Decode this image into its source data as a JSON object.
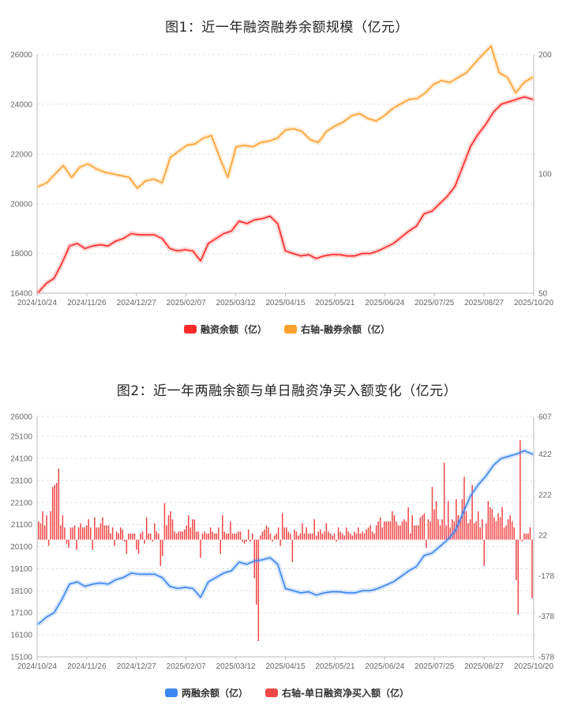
{
  "colors": {
    "margin": "#ff2a2a",
    "short": "#ffa12e",
    "total": "#3d86f0",
    "net": "#f04848"
  },
  "chart_data": [
    {
      "type": "line",
      "title": "图1：近一年融资融券余额规模（亿元）",
      "x_ticks": [
        "2024/10/24",
        "2024/11/26",
        "2024/12/27",
        "2025/02/07",
        "2025/03/12",
        "2025/04/15",
        "2025/05/21",
        "2025/06/24",
        "2025/07/25",
        "2025/08/27",
        "2025/10/20"
      ],
      "y_left": {
        "ticks": [
          "26000",
          "24000",
          "22000",
          "20000",
          "18000",
          "16400"
        ],
        "min": 16400,
        "max": 26000
      },
      "y_right": {
        "ticks": [
          "200",
          "100",
          "50"
        ],
        "scale": "log",
        "min": 50,
        "max": 200
      },
      "grid": true,
      "legend_position": "bottom",
      "series": [
        {
          "name": "融资余额（亿）",
          "axis": "left",
          "values": [
            16450,
            16800,
            17000,
            17600,
            18300,
            18400,
            18200,
            18300,
            18350,
            18300,
            18500,
            18600,
            18800,
            18750,
            18750,
            18750,
            18600,
            18200,
            18100,
            18150,
            18100,
            17700,
            18400,
            18600,
            18800,
            18900,
            19300,
            19200,
            19350,
            19400,
            19500,
            19200,
            18100,
            18000,
            17900,
            17950,
            17800,
            17900,
            17950,
            17950,
            17900,
            17900,
            18000,
            18000,
            18100,
            18250,
            18400,
            18650,
            18900,
            19100,
            19600,
            19700,
            20000,
            20300,
            20700,
            21500,
            22300,
            22800,
            23200,
            23700,
            24000,
            24100,
            24200,
            24300,
            24200
          ]
        },
        {
          "name": "右轴-融券余额（亿）",
          "axis": "right",
          "values": [
            93,
            95,
            100,
            105,
            98,
            104,
            106,
            103,
            101,
            100,
            99,
            98,
            92,
            96,
            97,
            95,
            110,
            114,
            118,
            119,
            123,
            125,
            110,
            98,
            117,
            118,
            117,
            120,
            121,
            123,
            129,
            130,
            128,
            122,
            120,
            128,
            132,
            135,
            140,
            142,
            138,
            136,
            140,
            146,
            150,
            154,
            155,
            160,
            168,
            172,
            170,
            175,
            180,
            190,
            200,
            210,
            180,
            175,
            160,
            170,
            175
          ]
        }
      ]
    },
    {
      "type": "bar",
      "title": "图2：近一年两融余额与单日融资净买入额变化（亿元）",
      "x_ticks": [
        "2024/10/24",
        "2024/11/26",
        "2024/12/27",
        "2025/02/07",
        "2025/03/12",
        "2025/04/15",
        "2025/05/21",
        "2025/06/24",
        "2025/07/25",
        "2025/08/27",
        "2025/10/20"
      ],
      "y_left": {
        "ticks": [
          "26000",
          "25100",
          "24100",
          "23100",
          "22100",
          "21100",
          "20100",
          "19100",
          "18100",
          "17100",
          "16100",
          "15100"
        ],
        "min": 15100,
        "max": 26000
      },
      "y_right": {
        "ticks": [
          "607",
          "422",
          "222",
          "22",
          "-178",
          "-378",
          "-578"
        ],
        "min": -578,
        "max": 607
      },
      "grid": true,
      "legend_position": "bottom",
      "series": [
        {
          "name": "两融余额（亿）",
          "axis": "left",
          "type": "line",
          "values": [
            16600,
            16900,
            17100,
            17700,
            18400,
            18500,
            18300,
            18400,
            18450,
            18400,
            18600,
            18700,
            18900,
            18850,
            18850,
            18850,
            18700,
            18300,
            18200,
            18250,
            18200,
            17800,
            18500,
            18700,
            18900,
            19000,
            19400,
            19300,
            19450,
            19500,
            19600,
            19300,
            18200,
            18100,
            18000,
            18050,
            17900,
            18000,
            18050,
            18050,
            18000,
            18000,
            18100,
            18100,
            18200,
            18350,
            18500,
            18750,
            19000,
            19200,
            19700,
            19800,
            20100,
            20400,
            20800,
            21600,
            22400,
            22900,
            23300,
            23800,
            24100,
            24200,
            24300,
            24450,
            24300
          ]
        },
        {
          "name": "右轴-单日融资净买入额（亿）",
          "axis": "right",
          "type": "bar",
          "values": [
            90,
            80,
            140,
            70,
            120,
            -30,
            140,
            260,
            270,
            280,
            350,
            70,
            120,
            60,
            -20,
            -40,
            60,
            60,
            70,
            -50,
            60,
            80,
            60,
            60,
            70,
            100,
            60,
            -50,
            110,
            60,
            60,
            80,
            110,
            70,
            70,
            70,
            30,
            60,
            -30,
            40,
            30,
            60,
            50,
            -10,
            -70,
            30,
            30,
            30,
            30,
            -50,
            -70,
            30,
            40,
            -20,
            110,
            30,
            30,
            -10,
            80,
            40,
            30,
            -130,
            -80,
            180,
            70,
            120,
            140,
            100,
            40,
            30,
            40,
            40,
            40,
            50,
            70,
            120,
            60,
            100,
            100,
            40,
            40,
            -90,
            30,
            40,
            30,
            30,
            60,
            40,
            30,
            30,
            60,
            -70,
            120,
            40,
            30,
            30,
            90,
            30,
            30,
            30,
            40,
            40,
            -10,
            -20,
            -10,
            50,
            -10,
            30,
            -190,
            -320,
            -500,
            20,
            40,
            50,
            70,
            60,
            30,
            -10,
            20,
            30,
            60,
            -30,
            130,
            60,
            60,
            40,
            30,
            -110,
            50,
            40,
            20,
            30,
            80,
            30,
            60,
            30,
            30,
            30,
            100,
            20,
            40,
            50,
            30,
            40,
            80,
            40,
            30,
            20,
            30,
            -10,
            60,
            40,
            30,
            20,
            60,
            40,
            30,
            20,
            40,
            30,
            60,
            30,
            40,
            30,
            50,
            60,
            70,
            40,
            30,
            70,
            90,
            110,
            60,
            90,
            90,
            90,
            90,
            140,
            120,
            90,
            70,
            70,
            90,
            100,
            90,
            160,
            30,
            120,
            70,
            70,
            70,
            110,
            120,
            130,
            -40,
            100,
            90,
            260,
            150,
            190,
            100,
            70,
            100,
            380,
            70,
            190,
            60,
            100,
            90,
            200,
            120,
            100,
            200,
            310,
            140,
            80,
            100,
            270,
            80,
            90,
            140,
            60,
            100,
            -130,
            80,
            190,
            160,
            150,
            110,
            90,
            130,
            110,
            160,
            60,
            70,
            100,
            120,
            90,
            60,
            -200,
            -370,
            490,
            -10,
            30,
            30,
            30,
            60,
            -290
          ]
        }
      ]
    }
  ],
  "legend1": {
    "margin_label": "融资余额（亿）",
    "short_label": "右轴-融券余额（亿）"
  },
  "legend2": {
    "total_label": "两融余额（亿）",
    "net_label": "右轴-单日融资净买入额（亿）"
  }
}
